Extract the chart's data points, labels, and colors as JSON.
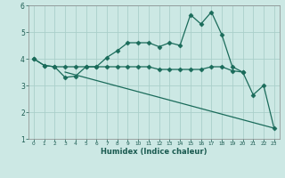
{
  "xlabel": "Humidex (Indice chaleur)",
  "bg_color": "#cce8e4",
  "grid_color": "#aacfca",
  "line_color": "#1a6b5a",
  "line1_x": [
    0,
    1,
    2,
    3,
    4,
    5,
    6,
    7,
    8,
    9,
    10,
    11,
    12,
    13,
    14,
    15,
    16,
    17,
    18,
    19,
    20,
    21,
    22,
    23
  ],
  "line1_y": [
    4.0,
    3.75,
    3.7,
    3.3,
    3.35,
    3.7,
    3.7,
    4.05,
    4.3,
    4.6,
    4.6,
    4.6,
    4.45,
    4.6,
    4.5,
    5.65,
    5.3,
    5.75,
    4.9,
    3.7,
    3.5,
    2.65,
    3.0,
    1.4
  ],
  "line2_x": [
    0,
    1,
    2,
    3,
    4,
    5,
    6,
    7,
    8,
    9,
    10,
    11,
    12,
    13,
    14,
    15,
    16,
    17,
    18,
    19,
    20
  ],
  "line2_y": [
    4.0,
    3.75,
    3.7,
    3.7,
    3.7,
    3.7,
    3.7,
    3.7,
    3.7,
    3.7,
    3.7,
    3.7,
    3.6,
    3.6,
    3.6,
    3.6,
    3.6,
    3.7,
    3.7,
    3.55,
    3.5
  ],
  "line3_x": [
    3,
    23
  ],
  "line3_y": [
    3.5,
    1.4
  ],
  "xlim": [
    -0.5,
    23.5
  ],
  "ylim": [
    1,
    6
  ],
  "yticks": [
    1,
    2,
    3,
    4,
    5,
    6
  ],
  "xticks": [
    0,
    1,
    2,
    3,
    4,
    5,
    6,
    7,
    8,
    9,
    10,
    11,
    12,
    13,
    14,
    15,
    16,
    17,
    18,
    19,
    20,
    21,
    22,
    23
  ]
}
